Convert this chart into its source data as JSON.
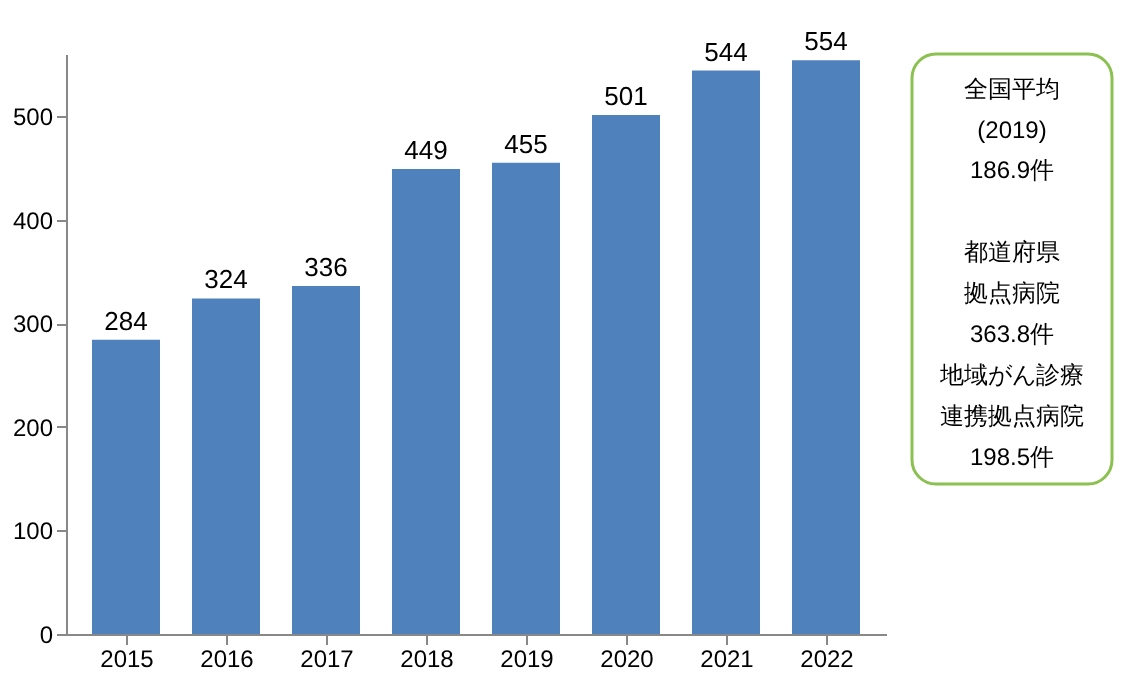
{
  "chart_data": {
    "type": "bar",
    "categories": [
      "2015",
      "2016",
      "2017",
      "2018",
      "2019",
      "2020",
      "2021",
      "2022"
    ],
    "values": [
      284,
      324,
      336,
      449,
      455,
      501,
      544,
      554
    ],
    "color": "#4f81bd",
    "ylim": [
      0,
      560
    ],
    "yticks": [
      0,
      100,
      200,
      300,
      400,
      500
    ],
    "grid": false,
    "data_labels": true,
    "annotations": [
      "全国平均",
      "(2019)",
      "186.9件",
      "都道府県",
      "拠点病院",
      "363.8件",
      "地域がん診療",
      "連携拠点病院",
      "198.5件"
    ]
  }
}
